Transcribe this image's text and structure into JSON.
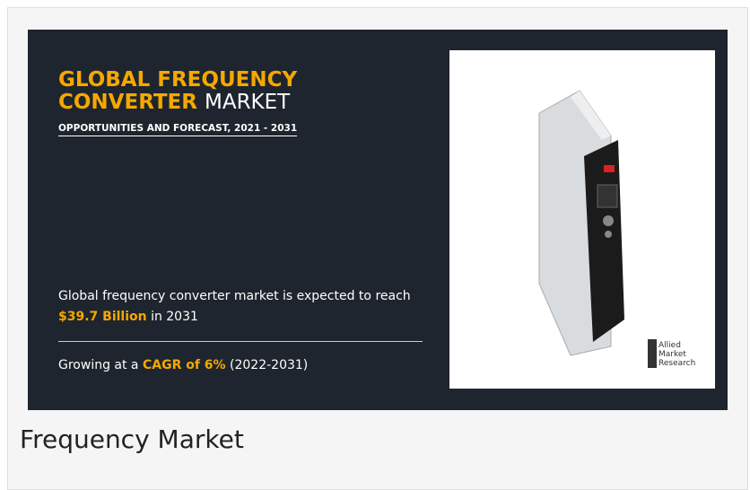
{
  "infographic": {
    "title_line1": "GLOBAL FREQUENCY",
    "title_line2_highlight": "CONVERTER",
    "title_line2_rest": "MARKET",
    "subtitle": "OPPORTUNITIES AND FORECAST, 2021 - 2031",
    "stat1": {
      "before": "Global frequency converter market is expected to reach",
      "highlight": "$39.7 Billion",
      "after": "in 2031"
    },
    "stat2": {
      "before": "Growing at a",
      "highlight": "CAGR of 6%",
      "after": "(2022-2031)"
    },
    "logo": [
      "Allied",
      "Market",
      "Research"
    ]
  },
  "caption": "Frequency Market"
}
